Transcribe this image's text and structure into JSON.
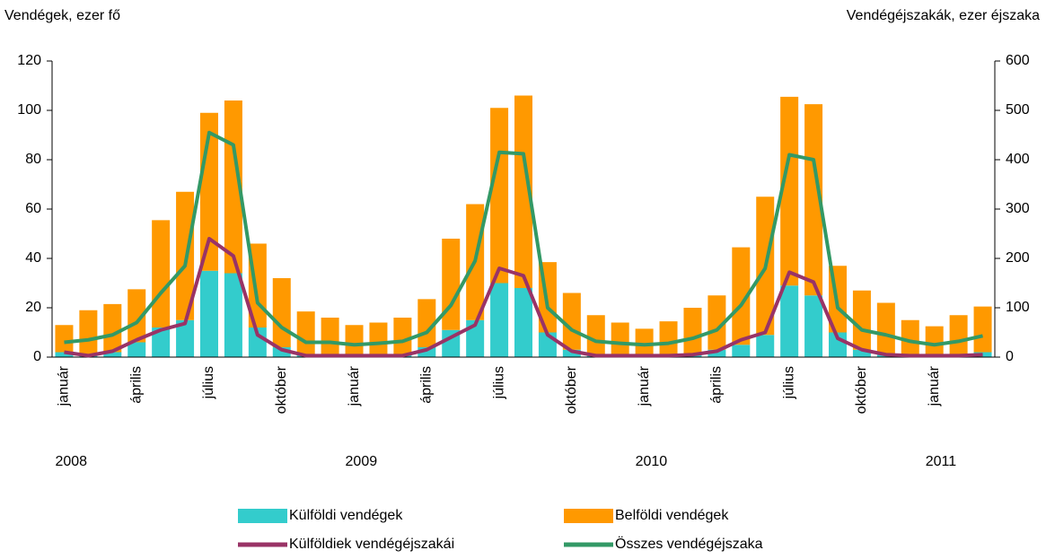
{
  "chart_data": {
    "type": "bar_line",
    "y_label": "Vendégek, ezer fő",
    "y2_label": "Vendégéjszakák, ezer éjszaka",
    "categories": [
      "január",
      null,
      null,
      "április",
      null,
      null,
      "július",
      null,
      null,
      "október",
      null,
      null,
      "január",
      null,
      null,
      "április",
      null,
      null,
      "július",
      null,
      null,
      "október",
      null,
      null,
      "január",
      null,
      null,
      "április",
      null,
      null,
      "július",
      null,
      null,
      "október",
      null,
      null,
      "január",
      null,
      null
    ],
    "year_labels": [
      "2008",
      "2009",
      "2010",
      "2011"
    ],
    "series": [
      {
        "name": "Külföldi vendégek",
        "kind": "bar",
        "color": "#33cccc",
        "values": [
          2,
          1,
          2,
          6,
          12,
          15,
          35,
          34,
          12,
          4,
          1,
          1,
          1,
          1,
          1,
          4,
          11,
          15,
          30,
          28,
          10,
          3,
          1,
          1,
          1,
          1,
          1,
          3,
          5,
          9,
          29,
          25,
          10,
          3,
          1,
          1,
          1,
          1,
          2
        ]
      },
      {
        "name": "Belföldi vendégek",
        "kind": "bar",
        "color": "#ff9900",
        "values": [
          11,
          18,
          19.5,
          21.5,
          43.5,
          52,
          64,
          70,
          34,
          28,
          17.5,
          15,
          12,
          13,
          15,
          19.5,
          37,
          47,
          71,
          78,
          28.5,
          23,
          16,
          13,
          10.5,
          13.5,
          19,
          22,
          39.5,
          56,
          76.5,
          77.5,
          27,
          24,
          21,
          14,
          11.5,
          16,
          18.5
        ]
      },
      {
        "name": "Külföldiek vendégéjszakái",
        "kind": "line",
        "axis": "y2",
        "color": "#993366",
        "values": [
          10,
          3,
          12,
          35,
          55,
          68,
          240,
          205,
          45,
          15,
          3,
          3,
          3,
          3,
          3,
          15,
          40,
          65,
          180,
          165,
          45,
          12,
          3,
          3,
          3,
          3,
          5,
          12,
          35,
          50,
          172,
          152,
          38,
          15,
          5,
          3,
          3,
          3,
          5
        ]
      },
      {
        "name": "Összes vendégéjszaka",
        "kind": "line",
        "axis": "y2",
        "color": "#339966",
        "values": [
          30,
          35,
          45,
          70,
          130,
          185,
          455,
          430,
          110,
          60,
          30,
          30,
          25,
          28,
          32,
          50,
          105,
          195,
          415,
          412,
          100,
          55,
          32,
          28,
          25,
          28,
          38,
          55,
          105,
          180,
          410,
          400,
          100,
          55,
          45,
          32,
          25,
          32,
          43
        ]
      }
    ],
    "ylim": [
      0,
      120
    ],
    "yticks": [
      0,
      20,
      40,
      60,
      80,
      100,
      120
    ],
    "y2lim": [
      0,
      600
    ],
    "y2ticks": [
      0,
      100,
      200,
      300,
      400,
      500,
      600
    ]
  }
}
